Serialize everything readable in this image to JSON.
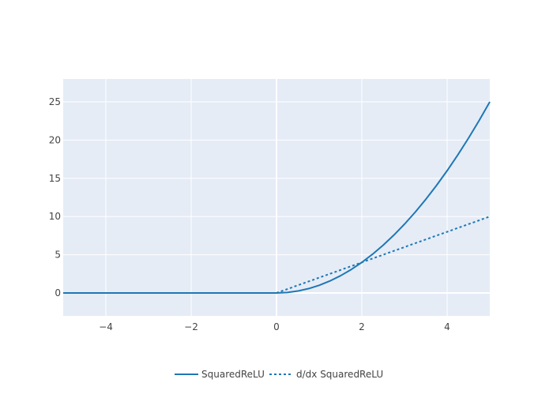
{
  "chart_data": {
    "type": "line",
    "title": "",
    "xlabel": "",
    "ylabel": "",
    "xlim": [
      -5,
      5
    ],
    "ylim": [
      -3,
      28
    ],
    "x_ticks": [
      -4,
      -2,
      0,
      2,
      4
    ],
    "x_tick_labels": [
      "−4",
      "−2",
      "0",
      "2",
      "4"
    ],
    "y_ticks": [
      0,
      5,
      10,
      15,
      20,
      25
    ],
    "y_tick_labels": [
      "0",
      "5",
      "10",
      "15",
      "20",
      "25"
    ],
    "grid": true,
    "legend_position": "bottom-center",
    "x": [
      -5,
      -4.5,
      -4,
      -3.5,
      -3,
      -2.5,
      -2,
      -1.5,
      -1,
      -0.5,
      0,
      0.25,
      0.5,
      0.75,
      1,
      1.25,
      1.5,
      1.75,
      2,
      2.25,
      2.5,
      2.75,
      3,
      3.25,
      3.5,
      3.75,
      4,
      4.25,
      4.5,
      4.75,
      5
    ],
    "series": [
      {
        "name": "SquaredReLU",
        "style": "solid",
        "values": [
          0,
          0,
          0,
          0,
          0,
          0,
          0,
          0,
          0,
          0,
          0,
          0.0625,
          0.25,
          0.5625,
          1,
          1.5625,
          2.25,
          3.0625,
          4,
          5.0625,
          6.25,
          7.5625,
          9,
          10.5625,
          12.25,
          14.0625,
          16,
          18.0625,
          20.25,
          22.5625,
          25
        ]
      },
      {
        "name": "d/dx SquaredReLU",
        "style": "dotted",
        "values": [
          0,
          0,
          0,
          0,
          0,
          0,
          0,
          0,
          0,
          0,
          0,
          0.5,
          1,
          1.5,
          2,
          2.5,
          3,
          3.5,
          4,
          4.5,
          5,
          5.5,
          6,
          6.5,
          7,
          7.5,
          8,
          8.5,
          9,
          9.5,
          10
        ]
      }
    ],
    "colors": {
      "line": "#1f77b4",
      "plot_bg": "#e5ecf6",
      "grid": "#ffffff",
      "text": "#444444"
    }
  }
}
